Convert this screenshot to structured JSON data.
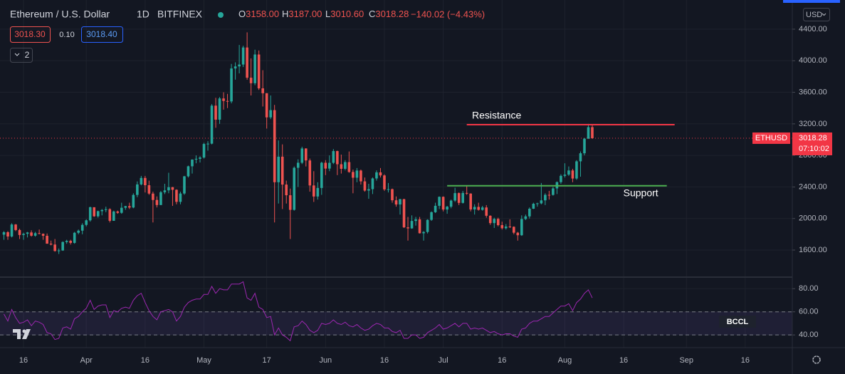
{
  "header": {
    "symbol": "Ethereum / U.S. Dollar",
    "interval": "1D",
    "exchange": "BITFINEX",
    "ohlc": [
      {
        "key": "O",
        "value": "3158.00"
      },
      {
        "key": "H",
        "value": "3187.00"
      },
      {
        "key": "L",
        "value": "3010.60"
      },
      {
        "key": "C",
        "value": "3018.28"
      }
    ],
    "change": "−140.02 (−4.43%)",
    "sell": "3018.30",
    "spread": "0.10",
    "buy": "3018.40",
    "indicators": "2",
    "currency": "USD"
  },
  "chart_data": {
    "type": "candlestick",
    "x": [
      "Mar 11",
      "Mar 12",
      "Mar 13",
      "Mar 14",
      "Mar 15",
      "Mar 16",
      "Mar 17",
      "Mar 18",
      "Mar 19",
      "Mar 20",
      "Mar 21",
      "Mar 22",
      "Mar 23",
      "Mar 24",
      "Mar 25",
      "Mar 26",
      "Mar 27",
      "Mar 28",
      "Mar 29",
      "Mar 30",
      "Mar 31",
      "Apr 1",
      "Apr 2",
      "Apr 3",
      "Apr 4",
      "Apr 5",
      "Apr 6",
      "Apr 7",
      "Apr 8",
      "Apr 9",
      "Apr 10",
      "Apr 11",
      "Apr 12",
      "Apr 13",
      "Apr 14",
      "Apr 15",
      "Apr 16",
      "Apr 17",
      "Apr 18",
      "Apr 19",
      "Apr 20",
      "Apr 21",
      "Apr 22",
      "Apr 23",
      "Apr 24",
      "Apr 25",
      "Apr 26",
      "Apr 27",
      "Apr 28",
      "Apr 29",
      "Apr 30",
      "May 1",
      "May 2",
      "May 3",
      "May 4",
      "May 5",
      "May 6",
      "May 7",
      "May 8",
      "May 9",
      "May 10",
      "May 11",
      "May 12",
      "May 13",
      "May 14",
      "May 15",
      "May 16",
      "May 17",
      "May 18",
      "May 19",
      "May 20",
      "May 21",
      "May 22",
      "May 23",
      "May 24",
      "May 25",
      "May 26",
      "May 27",
      "May 28",
      "May 29",
      "May 30",
      "May 31",
      "Jun 1",
      "Jun 2",
      "Jun 3",
      "Jun 4",
      "Jun 5",
      "Jun 6",
      "Jun 7",
      "Jun 8",
      "Jun 9",
      "Jun 10",
      "Jun 11",
      "Jun 12",
      "Jun 13",
      "Jun 14",
      "Jun 15",
      "Jun 16",
      "Jun 17",
      "Jun 18",
      "Jun 19",
      "Jun 20",
      "Jun 21",
      "Jun 22",
      "Jun 23",
      "Jun 24",
      "Jun 25",
      "Jun 26",
      "Jun 27",
      "Jun 28",
      "Jun 29",
      "Jun 30",
      "Jul 1",
      "Jul 2",
      "Jul 3",
      "Jul 4",
      "Jul 5",
      "Jul 6",
      "Jul 7",
      "Jul 8",
      "Jul 9",
      "Jul 10",
      "Jul 11",
      "Jul 12",
      "Jul 13",
      "Jul 14",
      "Jul 15",
      "Jul 16",
      "Jul 17",
      "Jul 18",
      "Jul 19",
      "Jul 20",
      "Jul 21",
      "Jul 22",
      "Jul 23",
      "Jul 24",
      "Jul 25",
      "Jul 26",
      "Jul 27",
      "Jul 28",
      "Jul 29",
      "Jul 30",
      "Jul 31",
      "Aug 1",
      "Aug 2",
      "Aug 3",
      "Aug 4",
      "Aug 5",
      "Aug 6",
      "Aug 7",
      "Aug 8"
    ],
    "open": [
      1795,
      1826,
      1772,
      1924,
      1854,
      1791,
      1806,
      1823,
      1782,
      1814,
      1806,
      1781,
      1681,
      1670,
      1588,
      1595,
      1702,
      1717,
      1691,
      1819,
      1846,
      1919,
      1977,
      2143,
      2028,
      2093,
      2108,
      2118,
      1971,
      2089,
      2072,
      2136,
      2157,
      2139,
      2299,
      2432,
      2514,
      2422,
      2316,
      2235,
      2171,
      2333,
      2357,
      2397,
      2364,
      2211,
      2317,
      2535,
      2662,
      2747,
      2757,
      2773,
      2945,
      2949,
      3431,
      3253,
      3522,
      3490,
      3484,
      3902,
      3928,
      3952,
      4168,
      3785,
      3715,
      4079,
      3650,
      3588,
      3282,
      3374,
      2460,
      2784,
      2430,
      2295,
      2110,
      2643,
      2707,
      2888,
      2736,
      2419,
      2279,
      2387,
      2707,
      2633,
      2706,
      2855,
      2688,
      2630,
      2715,
      2590,
      2517,
      2608,
      2471,
      2354,
      2372,
      2508,
      2585,
      2546,
      2369,
      2372,
      2231,
      2178,
      2245,
      1888,
      1875,
      1969,
      1990,
      1813,
      1829,
      1983,
      2080,
      2161,
      2275,
      2114,
      2150,
      2227,
      2322,
      2198,
      2324,
      2316,
      2115,
      2147,
      2110,
      2140,
      2035,
      1942,
      1995,
      1916,
      1877,
      1898,
      1895,
      1820,
      1788,
      1994,
      2027,
      2124,
      2187,
      2192,
      2230,
      2300,
      2299,
      2382,
      2461,
      2541,
      2556,
      2609,
      2507,
      2725,
      2827,
      3012,
      3158
    ],
    "high": [
      1840,
      1840,
      1940,
      1930,
      1870,
      1820,
      1830,
      1850,
      1830,
      1860,
      1810,
      1810,
      1720,
      1740,
      1620,
      1710,
      1730,
      1730,
      1830,
      1860,
      1940,
      1990,
      2150,
      2140,
      2100,
      2120,
      2150,
      2130,
      2100,
      2100,
      2200,
      2160,
      2200,
      2320,
      2470,
      2540,
      2540,
      2480,
      2340,
      2280,
      2350,
      2440,
      2580,
      2400,
      2370,
      2340,
      2540,
      2670,
      2750,
      2800,
      2790,
      2960,
      2980,
      3450,
      3530,
      3540,
      3600,
      3580,
      3960,
      3980,
      4200,
      4190,
      4360,
      4030,
      4140,
      4130,
      3880,
      3590,
      3560,
      3440,
      2990,
      2940,
      2480,
      2380,
      2660,
      2750,
      2910,
      2890,
      2760,
      2600,
      2460,
      2720,
      2740,
      2800,
      2880,
      2860,
      2810,
      2740,
      2850,
      2620,
      2640,
      2620,
      2520,
      2440,
      2520,
      2610,
      2640,
      2560,
      2450,
      2380,
      2280,
      2250,
      2250,
      2020,
      2040,
      2020,
      2020,
      1840,
      1990,
      2090,
      2200,
      2280,
      2280,
      2160,
      2240,
      2390,
      2330,
      2350,
      2410,
      2320,
      2180,
      2200,
      2160,
      2170,
      2040,
      2010,
      2010,
      1960,
      1930,
      1990,
      1900,
      1830,
      2040,
      2050,
      2140,
      2200,
      2200,
      2450,
      2320,
      2350,
      2400,
      2470,
      2560,
      2700,
      2660,
      2630,
      2740,
      2850,
      3020,
      3200,
      3187
    ],
    "low": [
      1730,
      1730,
      1760,
      1840,
      1740,
      1730,
      1760,
      1770,
      1770,
      1800,
      1730,
      1680,
      1660,
      1580,
      1550,
      1590,
      1680,
      1670,
      1680,
      1800,
      1800,
      1900,
      1960,
      2020,
      2010,
      2040,
      2080,
      1950,
      1970,
      2060,
      2060,
      2110,
      2120,
      2130,
      2270,
      2420,
      2330,
      2300,
      1950,
      2140,
      2170,
      2310,
      2320,
      2160,
      2180,
      2180,
      2300,
      2520,
      2570,
      2700,
      2710,
      2760,
      2860,
      2940,
      3150,
      3200,
      3380,
      3400,
      3460,
      3760,
      3840,
      3920,
      3760,
      3560,
      3690,
      3630,
      3420,
      3140,
      3260,
      1950,
      2190,
      2120,
      2190,
      1740,
      2100,
      2400,
      2690,
      2660,
      2340,
      2210,
      2240,
      2300,
      2550,
      2600,
      2690,
      2550,
      2570,
      2610,
      2580,
      2320,
      2460,
      2430,
      2340,
      2250,
      2310,
      2480,
      2520,
      2350,
      2330,
      2200,
      2150,
      2050,
      1880,
      1720,
      1870,
      1910,
      1810,
      1720,
      1810,
      1970,
      2070,
      2120,
      2090,
      2060,
      2130,
      2210,
      2170,
      2190,
      2300,
      2090,
      2050,
      2100,
      2100,
      2010,
      1920,
      1880,
      1900,
      1860,
      1860,
      1880,
      1800,
      1720,
      1780,
      1980,
      2000,
      2120,
      2150,
      2180,
      2170,
      2240,
      2290,
      2310,
      2440,
      2520,
      2540,
      2460,
      2490,
      2530,
      2800,
      3010,
      3010.6
    ],
    "close": [
      1826,
      1772,
      1924,
      1854,
      1791,
      1806,
      1823,
      1782,
      1814,
      1806,
      1781,
      1681,
      1670,
      1588,
      1595,
      1702,
      1717,
      1691,
      1819,
      1846,
      1919,
      1977,
      2143,
      2028,
      2093,
      2108,
      2118,
      1971,
      2089,
      2072,
      2136,
      2157,
      2139,
      2299,
      2432,
      2514,
      2422,
      2316,
      2235,
      2171,
      2333,
      2357,
      2397,
      2364,
      2211,
      2317,
      2535,
      2662,
      2747,
      2757,
      2773,
      2945,
      2949,
      3431,
      3253,
      3522,
      3490,
      3484,
      3902,
      3928,
      3952,
      4168,
      3785,
      3715,
      4079,
      3650,
      3588,
      3282,
      3374,
      2460,
      2784,
      2430,
      2295,
      2110,
      2643,
      2707,
      2888,
      2736,
      2419,
      2279,
      2387,
      2707,
      2633,
      2706,
      2855,
      2688,
      2630,
      2715,
      2590,
      2517,
      2608,
      2471,
      2354,
      2372,
      2508,
      2585,
      2546,
      2369,
      2372,
      2231,
      2178,
      2245,
      1888,
      1875,
      1969,
      1990,
      1813,
      1829,
      1983,
      2080,
      2161,
      2275,
      2114,
      2150,
      2227,
      2322,
      2198,
      2324,
      2316,
      2115,
      2147,
      2110,
      2140,
      2035,
      1942,
      1995,
      1916,
      1877,
      1898,
      1895,
      1820,
      1788,
      1994,
      2027,
      2124,
      2187,
      2192,
      2230,
      2300,
      2299,
      2382,
      2461,
      2541,
      2556,
      2609,
      2507,
      2725,
      2827,
      3012,
      3158,
      3018.28
    ],
    "up_color": "#26a69a",
    "down_color": "#ef5350",
    "xlim": [
      "Mar 10",
      "Sep 28"
    ],
    "xticks": [
      {
        "value": "Mar 16",
        "label": "16"
      },
      {
        "value": "Apr 1",
        "label": "Apr"
      },
      {
        "value": "Apr 16",
        "label": "16"
      },
      {
        "value": "May 1",
        "label": "May"
      },
      {
        "value": "May 17",
        "label": "17"
      },
      {
        "value": "Jun 1",
        "label": "Jun"
      },
      {
        "value": "Jun 16",
        "label": "16"
      },
      {
        "value": "Jul 1",
        "label": "Jul"
      },
      {
        "value": "Jul 16",
        "label": "16"
      },
      {
        "value": "Aug 1",
        "label": "Aug"
      },
      {
        "value": "Aug 16",
        "label": "16"
      },
      {
        "value": "Sep 1",
        "label": "Sep"
      },
      {
        "value": "Sep 16",
        "label": "16"
      }
    ],
    "ylim": [
      1257,
      4770
    ],
    "yticks": [
      {
        "value": 1600,
        "label": "1600.00"
      },
      {
        "value": 2000,
        "label": "2000.00"
      },
      {
        "value": 2400,
        "label": "2400.00"
      },
      {
        "value": 2800,
        "label": "2800.00"
      },
      {
        "value": 3200,
        "label": "3200.00"
      },
      {
        "value": 3600,
        "label": "3600.00"
      },
      {
        "value": 4000,
        "label": "4000.00"
      },
      {
        "value": 4400,
        "label": "4400.00"
      }
    ],
    "grid": true,
    "last_price": {
      "symbol": "ETHUSD",
      "value": 3018.28,
      "label": "3018.28",
      "countdown": "07:10:02",
      "color": "#f23645"
    },
    "annotations": [
      {
        "text": "Resistance",
        "value": 3190,
        "from": "Jul 7",
        "to": "Aug 29",
        "color": "#f23645"
      },
      {
        "text": "Support",
        "value": 2415,
        "from": "Jul 2",
        "to": "Aug 27",
        "color": "#4caf50"
      }
    ],
    "watermark": "BCCL",
    "indicator": {
      "type": "line",
      "color": "#9c27b0",
      "ylim": [
        29,
        90
      ],
      "yticks": [
        {
          "value": 40,
          "label": "40.00"
        },
        {
          "value": 60,
          "label": "60.00"
        },
        {
          "value": 80,
          "label": "80.00"
        }
      ],
      "band": [
        40,
        60
      ],
      "values": [
        58,
        52,
        62,
        55,
        50,
        51,
        53,
        48,
        52,
        51,
        49,
        42,
        41,
        36,
        37,
        46,
        47,
        45,
        54,
        56,
        60,
        63,
        70,
        62,
        65,
        66,
        66,
        55,
        61,
        60,
        63,
        64,
        63,
        70,
        74,
        76,
        68,
        61,
        56,
        53,
        60,
        61,
        62,
        60,
        52,
        56,
        64,
        68,
        70,
        71,
        71,
        75,
        75,
        82,
        76,
        80,
        79,
        79,
        84,
        84,
        84,
        86,
        72,
        70,
        76,
        64,
        62,
        55,
        56,
        40,
        46,
        40,
        38,
        35,
        47,
        48,
        52,
        49,
        44,
        42,
        44,
        50,
        49,
        50,
        53,
        50,
        49,
        51,
        48,
        47,
        49,
        46,
        44,
        45,
        48,
        50,
        49,
        46,
        46,
        43,
        42,
        44,
        37,
        37,
        40,
        40,
        37,
        38,
        42,
        44,
        46,
        49,
        45,
        46,
        48,
        50,
        47,
        50,
        50,
        45,
        46,
        45,
        46,
        44,
        42,
        43,
        41,
        40,
        41,
        41,
        39,
        38,
        45,
        46,
        50,
        52,
        52,
        54,
        56,
        56,
        59,
        62,
        65,
        65,
        67,
        61,
        68,
        71,
        76,
        79,
        72
      ]
    }
  }
}
